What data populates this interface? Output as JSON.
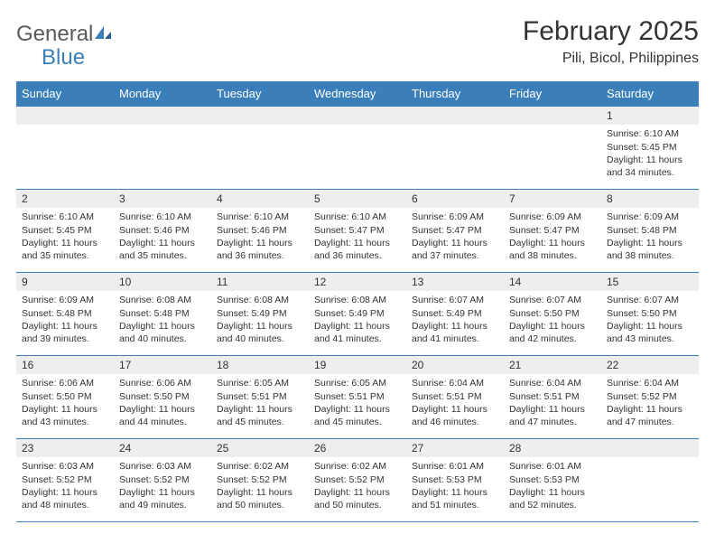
{
  "brand": {
    "part1": "General",
    "part2": "Blue"
  },
  "title": "February 2025",
  "location": "Pili, Bicol, Philippines",
  "colors": {
    "header_bg": "#3b7fba",
    "header_fg": "#ffffff",
    "daynum_bg": "#eceeef",
    "border": "#3b7fba",
    "text": "#333333",
    "logo_gray": "#5a5a5a",
    "logo_blue": "#3b7fba"
  },
  "day_headers": [
    "Sunday",
    "Monday",
    "Tuesday",
    "Wednesday",
    "Thursday",
    "Friday",
    "Saturday"
  ],
  "weeks": [
    [
      {
        "n": "",
        "sunrise": "",
        "sunset": "",
        "daylight": ""
      },
      {
        "n": "",
        "sunrise": "",
        "sunset": "",
        "daylight": ""
      },
      {
        "n": "",
        "sunrise": "",
        "sunset": "",
        "daylight": ""
      },
      {
        "n": "",
        "sunrise": "",
        "sunset": "",
        "daylight": ""
      },
      {
        "n": "",
        "sunrise": "",
        "sunset": "",
        "daylight": ""
      },
      {
        "n": "",
        "sunrise": "",
        "sunset": "",
        "daylight": ""
      },
      {
        "n": "1",
        "sunrise": "Sunrise: 6:10 AM",
        "sunset": "Sunset: 5:45 PM",
        "daylight": "Daylight: 11 hours and 34 minutes."
      }
    ],
    [
      {
        "n": "2",
        "sunrise": "Sunrise: 6:10 AM",
        "sunset": "Sunset: 5:45 PM",
        "daylight": "Daylight: 11 hours and 35 minutes."
      },
      {
        "n": "3",
        "sunrise": "Sunrise: 6:10 AM",
        "sunset": "Sunset: 5:46 PM",
        "daylight": "Daylight: 11 hours and 35 minutes."
      },
      {
        "n": "4",
        "sunrise": "Sunrise: 6:10 AM",
        "sunset": "Sunset: 5:46 PM",
        "daylight": "Daylight: 11 hours and 36 minutes."
      },
      {
        "n": "5",
        "sunrise": "Sunrise: 6:10 AM",
        "sunset": "Sunset: 5:47 PM",
        "daylight": "Daylight: 11 hours and 36 minutes."
      },
      {
        "n": "6",
        "sunrise": "Sunrise: 6:09 AM",
        "sunset": "Sunset: 5:47 PM",
        "daylight": "Daylight: 11 hours and 37 minutes."
      },
      {
        "n": "7",
        "sunrise": "Sunrise: 6:09 AM",
        "sunset": "Sunset: 5:47 PM",
        "daylight": "Daylight: 11 hours and 38 minutes."
      },
      {
        "n": "8",
        "sunrise": "Sunrise: 6:09 AM",
        "sunset": "Sunset: 5:48 PM",
        "daylight": "Daylight: 11 hours and 38 minutes."
      }
    ],
    [
      {
        "n": "9",
        "sunrise": "Sunrise: 6:09 AM",
        "sunset": "Sunset: 5:48 PM",
        "daylight": "Daylight: 11 hours and 39 minutes."
      },
      {
        "n": "10",
        "sunrise": "Sunrise: 6:08 AM",
        "sunset": "Sunset: 5:48 PM",
        "daylight": "Daylight: 11 hours and 40 minutes."
      },
      {
        "n": "11",
        "sunrise": "Sunrise: 6:08 AM",
        "sunset": "Sunset: 5:49 PM",
        "daylight": "Daylight: 11 hours and 40 minutes."
      },
      {
        "n": "12",
        "sunrise": "Sunrise: 6:08 AM",
        "sunset": "Sunset: 5:49 PM",
        "daylight": "Daylight: 11 hours and 41 minutes."
      },
      {
        "n": "13",
        "sunrise": "Sunrise: 6:07 AM",
        "sunset": "Sunset: 5:49 PM",
        "daylight": "Daylight: 11 hours and 41 minutes."
      },
      {
        "n": "14",
        "sunrise": "Sunrise: 6:07 AM",
        "sunset": "Sunset: 5:50 PM",
        "daylight": "Daylight: 11 hours and 42 minutes."
      },
      {
        "n": "15",
        "sunrise": "Sunrise: 6:07 AM",
        "sunset": "Sunset: 5:50 PM",
        "daylight": "Daylight: 11 hours and 43 minutes."
      }
    ],
    [
      {
        "n": "16",
        "sunrise": "Sunrise: 6:06 AM",
        "sunset": "Sunset: 5:50 PM",
        "daylight": "Daylight: 11 hours and 43 minutes."
      },
      {
        "n": "17",
        "sunrise": "Sunrise: 6:06 AM",
        "sunset": "Sunset: 5:50 PM",
        "daylight": "Daylight: 11 hours and 44 minutes."
      },
      {
        "n": "18",
        "sunrise": "Sunrise: 6:05 AM",
        "sunset": "Sunset: 5:51 PM",
        "daylight": "Daylight: 11 hours and 45 minutes."
      },
      {
        "n": "19",
        "sunrise": "Sunrise: 6:05 AM",
        "sunset": "Sunset: 5:51 PM",
        "daylight": "Daylight: 11 hours and 45 minutes."
      },
      {
        "n": "20",
        "sunrise": "Sunrise: 6:04 AM",
        "sunset": "Sunset: 5:51 PM",
        "daylight": "Daylight: 11 hours and 46 minutes."
      },
      {
        "n": "21",
        "sunrise": "Sunrise: 6:04 AM",
        "sunset": "Sunset: 5:51 PM",
        "daylight": "Daylight: 11 hours and 47 minutes."
      },
      {
        "n": "22",
        "sunrise": "Sunrise: 6:04 AM",
        "sunset": "Sunset: 5:52 PM",
        "daylight": "Daylight: 11 hours and 47 minutes."
      }
    ],
    [
      {
        "n": "23",
        "sunrise": "Sunrise: 6:03 AM",
        "sunset": "Sunset: 5:52 PM",
        "daylight": "Daylight: 11 hours and 48 minutes."
      },
      {
        "n": "24",
        "sunrise": "Sunrise: 6:03 AM",
        "sunset": "Sunset: 5:52 PM",
        "daylight": "Daylight: 11 hours and 49 minutes."
      },
      {
        "n": "25",
        "sunrise": "Sunrise: 6:02 AM",
        "sunset": "Sunset: 5:52 PM",
        "daylight": "Daylight: 11 hours and 50 minutes."
      },
      {
        "n": "26",
        "sunrise": "Sunrise: 6:02 AM",
        "sunset": "Sunset: 5:52 PM",
        "daylight": "Daylight: 11 hours and 50 minutes."
      },
      {
        "n": "27",
        "sunrise": "Sunrise: 6:01 AM",
        "sunset": "Sunset: 5:53 PM",
        "daylight": "Daylight: 11 hours and 51 minutes."
      },
      {
        "n": "28",
        "sunrise": "Sunrise: 6:01 AM",
        "sunset": "Sunset: 5:53 PM",
        "daylight": "Daylight: 11 hours and 52 minutes."
      },
      {
        "n": "",
        "sunrise": "",
        "sunset": "",
        "daylight": ""
      }
    ]
  ]
}
